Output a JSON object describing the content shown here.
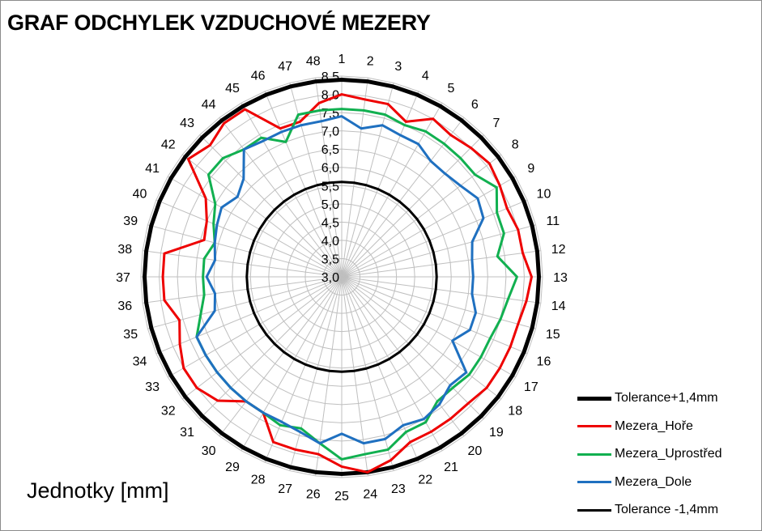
{
  "chart_data": {
    "type": "radar",
    "title": "GRAF ODCHYLEK VZDUCHOVÉ MEZERY",
    "unit_label": "Jednotky [mm]",
    "categories": [
      "1",
      "2",
      "3",
      "4",
      "5",
      "6",
      "7",
      "8",
      "9",
      "10",
      "11",
      "12",
      "13",
      "14",
      "15",
      "16",
      "17",
      "18",
      "19",
      "20",
      "21",
      "22",
      "23",
      "24",
      "25",
      "26",
      "27",
      "28",
      "29",
      "30",
      "31",
      "32",
      "33",
      "34",
      "35",
      "36",
      "37",
      "38",
      "39",
      "40",
      "41",
      "42",
      "43",
      "44",
      "45",
      "46",
      "47",
      "48"
    ],
    "radial_ticks": [
      "3,0",
      "3,5",
      "4,0",
      "4,5",
      "5,0",
      "5,5",
      "6,0",
      "6,5",
      "7,0",
      "7,5",
      "8,0",
      "8,5"
    ],
    "rlim": [
      3.0,
      8.5
    ],
    "grid": true,
    "legend_position": "bottom-right",
    "series": [
      {
        "name": "Tolerance+1,4mm",
        "color": "#000000",
        "width": 5,
        "values": [
          8.4,
          8.4,
          8.4,
          8.4,
          8.4,
          8.4,
          8.4,
          8.4,
          8.4,
          8.4,
          8.4,
          8.4,
          8.4,
          8.4,
          8.4,
          8.4,
          8.4,
          8.4,
          8.4,
          8.4,
          8.4,
          8.4,
          8.4,
          8.4,
          8.4,
          8.4,
          8.4,
          8.4,
          8.4,
          8.4,
          8.4,
          8.4,
          8.4,
          8.4,
          8.4,
          8.4,
          8.4,
          8.4,
          8.4,
          8.4,
          8.4,
          8.4,
          8.4,
          8.4,
          8.4,
          8.4,
          8.4,
          8.4
        ]
      },
      {
        "name": "Mezera_Hoře",
        "color": "#ee0000",
        "width": 3,
        "values": [
          8.0,
          7.9,
          7.9,
          7.6,
          8.0,
          7.9,
          8.0,
          8.1,
          8.0,
          7.9,
          8.0,
          8.0,
          8.2,
          8.1,
          8.0,
          8.0,
          8.0,
          8.0,
          7.9,
          7.9,
          7.9,
          7.9,
          8.2,
          8.4,
          8.2,
          7.9,
          7.9,
          7.9,
          7.3,
          7.3,
          7.8,
          8.0,
          8.0,
          7.8,
          7.6,
          7.9,
          7.9,
          7.9,
          6.9,
          7.0,
          7.3,
          8.3,
          8.1,
          8.3,
          8.3,
          7.4,
          7.4,
          7.8
        ]
      },
      {
        "name": "Mezera_Uprostřed",
        "color": "#11b050",
        "width": 3,
        "values": [
          7.6,
          7.6,
          7.6,
          7.5,
          7.6,
          7.6,
          7.6,
          7.6,
          7.9,
          7.6,
          7.6,
          7.3,
          7.8,
          7.6,
          7.5,
          7.4,
          7.4,
          7.4,
          7.3,
          7.3,
          7.6,
          7.6,
          7.9,
          7.9,
          8.0,
          7.6,
          7.3,
          7.4,
          7.3,
          7.3,
          7.3,
          7.3,
          7.3,
          7.3,
          7.0,
          6.8,
          6.8,
          6.8,
          6.6,
          6.8,
          7.0,
          7.6,
          7.6,
          7.4,
          7.4,
          7.0,
          7.6,
          7.6
        ]
      },
      {
        "name": "Mezera_Dole",
        "color": "#1f70c0",
        "width": 3,
        "values": [
          7.4,
          7.1,
          7.3,
          7.2,
          7.2,
          7.0,
          7.0,
          7.1,
          7.3,
          7.2,
          6.7,
          6.6,
          6.6,
          6.6,
          6.8,
          6.8,
          6.5,
          7.3,
          7.2,
          7.4,
          7.5,
          7.4,
          7.6,
          7.6,
          7.3,
          7.6,
          7.4,
          7.3,
          7.3,
          7.3,
          7.3,
          7.3,
          7.3,
          7.3,
          6.6,
          6.5,
          6.7,
          6.5,
          6.6,
          6.7,
          6.8,
          6.6,
          6.8,
          7.4,
          7.3,
          7.3,
          7.3,
          7.3
        ]
      },
      {
        "name": "Tolerance -1,4mm",
        "color": "#000000",
        "width": 3,
        "values": [
          5.6,
          5.6,
          5.6,
          5.6,
          5.6,
          5.6,
          5.6,
          5.6,
          5.6,
          5.6,
          5.6,
          5.6,
          5.6,
          5.6,
          5.6,
          5.6,
          5.6,
          5.6,
          5.6,
          5.6,
          5.6,
          5.6,
          5.6,
          5.6,
          5.6,
          5.6,
          5.6,
          5.6,
          5.6,
          5.6,
          5.6,
          5.6,
          5.6,
          5.6,
          5.6,
          5.6,
          5.6,
          5.6,
          5.6,
          5.6,
          5.6,
          5.6,
          5.6,
          5.6,
          5.6,
          5.6,
          5.6,
          5.6
        ]
      }
    ]
  }
}
